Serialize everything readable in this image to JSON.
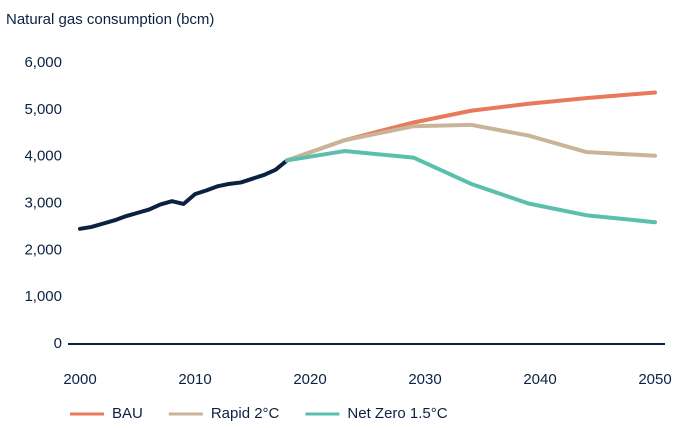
{
  "chart_data": {
    "type": "line",
    "title": "Natural gas consumption (bcm)",
    "xlim": [
      2000,
      2050
    ],
    "xticks": [
      2000,
      2010,
      2020,
      2030,
      2040,
      2050
    ],
    "ylim": [
      0,
      6000
    ],
    "yticks": [
      0,
      {
        "value": 1000,
        "label": "1,000"
      },
      {
        "value": 2000,
        "label": "2,000"
      },
      {
        "value": 3000,
        "label": "3,000"
      },
      {
        "value": 4000,
        "label": "4,000"
      },
      {
        "value": 5000,
        "label": "5,000"
      },
      {
        "value": 6000,
        "label": "6,000"
      }
    ],
    "grid": false,
    "legend": "bottom",
    "series": [
      {
        "color": "#0c2142",
        "x": [
          2000,
          2001,
          2002,
          2003,
          2004,
          2005,
          2006,
          2007,
          2008,
          2009,
          2010,
          2011,
          2012,
          2013,
          2014,
          2015,
          2016,
          2017,
          2018
        ],
        "values": [
          2460,
          2500,
          2570,
          2640,
          2730,
          2800,
          2870,
          2980,
          3050,
          2990,
          3200,
          3280,
          3370,
          3420,
          3450,
          3530,
          3610,
          3720,
          3920
        ]
      },
      {
        "name": "BAU",
        "color": "#e8795a",
        "x": [
          2018,
          2023,
          2029,
          2034,
          2039,
          2044,
          2050
        ],
        "values": [
          3920,
          4350,
          4730,
          4980,
          5130,
          5250,
          5370
        ]
      },
      {
        "name": "Rapid 2°C",
        "color": "#c9b49a",
        "x": [
          2018,
          2023,
          2029,
          2034,
          2039,
          2044,
          2050
        ],
        "values": [
          3920,
          4350,
          4650,
          4680,
          4450,
          4100,
          4020
        ]
      },
      {
        "name": "Net Zero 1.5°C",
        "color": "#5bbfae",
        "x": [
          2018,
          2023,
          2029,
          2034,
          2039,
          2044,
          2050
        ],
        "values": [
          3920,
          4120,
          3980,
          3420,
          3000,
          2750,
          2600
        ]
      }
    ]
  }
}
